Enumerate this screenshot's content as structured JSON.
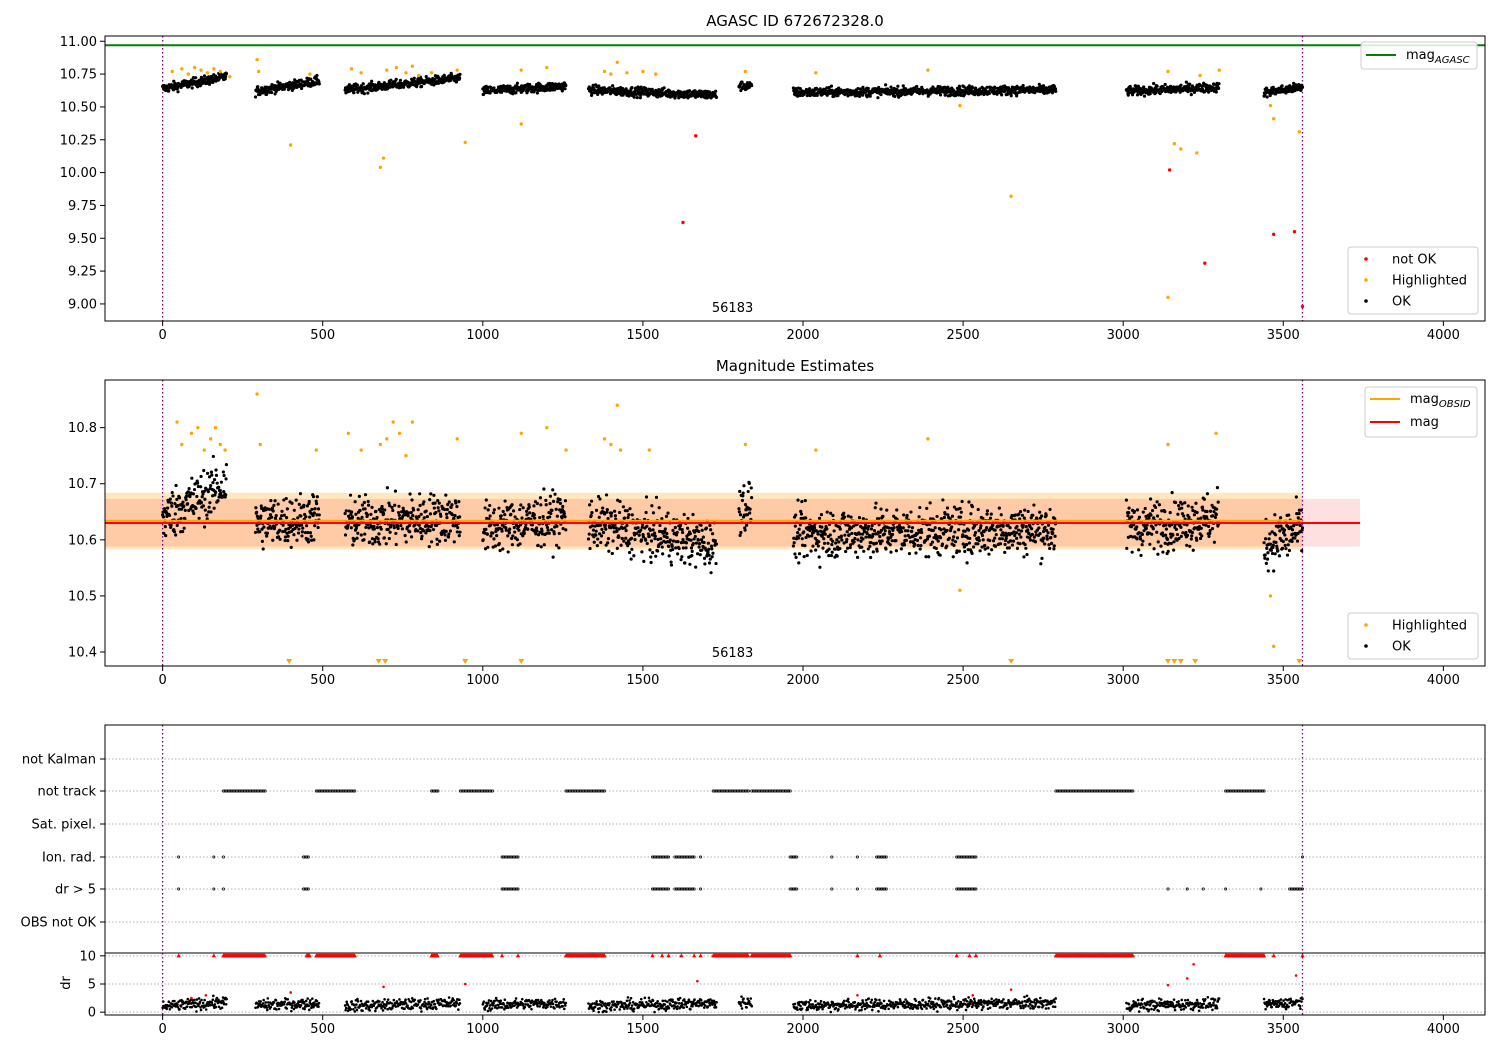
{
  "chart_data": [
    {
      "type": "scatter",
      "title": "AGASC ID 672672328.0",
      "xlim": [
        -180,
        4130
      ],
      "ylim": [
        8.87,
        11.04
      ],
      "x_ticks": [
        0,
        500,
        1000,
        1500,
        2000,
        2500,
        3000,
        3500,
        4000
      ],
      "y_ticks": [
        9.0,
        9.25,
        9.5,
        9.75,
        10.0,
        10.25,
        10.5,
        10.75,
        11.0
      ],
      "y_tick_labels": [
        "9.00",
        "9.25",
        "9.50",
        "9.75",
        "10.00",
        "10.25",
        "10.50",
        "10.75",
        "11.00"
      ],
      "annotation": "56183",
      "annotation_x": 1780,
      "vlines": [
        0,
        3560
      ],
      "vline_color": "#800080",
      "hlines": [
        {
          "name": "mag_AGASC",
          "y": 10.97,
          "color": "#008000"
        }
      ],
      "legend_lines": [
        {
          "label": "mag",
          "sub": "AGASC",
          "color": "#008000"
        }
      ],
      "legend_points": [
        {
          "label": "not OK",
          "color": "#ff0000"
        },
        {
          "label": "Highlighted",
          "color": "#ffa500"
        },
        {
          "label": "OK",
          "color": "#000000"
        }
      ],
      "series": [
        {
          "name": "OK",
          "color": "#000000",
          "segments": [
            [
              0,
              200,
              10.64,
              10.73
            ],
            [
              290,
              490,
              10.62,
              10.7
            ],
            [
              570,
              930,
              10.63,
              10.72
            ],
            [
              1000,
              1260,
              10.62,
              10.66
            ],
            [
              1330,
              1730,
              10.63,
              10.59
            ],
            [
              1800,
              1840,
              10.66,
              10.66
            ],
            [
              1970,
              2790,
              10.61,
              10.63
            ],
            [
              3010,
              3300,
              10.62,
              10.65
            ],
            [
              3440,
              3560,
              10.61,
              10.65
            ]
          ],
          "spread": 0.035
        },
        {
          "name": "Highlighted",
          "color": "#ffa500",
          "points": [
            [
              30,
              10.77
            ],
            [
              60,
              10.79
            ],
            [
              80,
              10.75
            ],
            [
              100,
              10.8
            ],
            [
              120,
              10.78
            ],
            [
              140,
              10.76
            ],
            [
              160,
              10.79
            ],
            [
              180,
              10.77
            ],
            [
              210,
              10.73
            ],
            [
              295,
              10.86
            ],
            [
              300,
              10.77
            ],
            [
              400,
              10.21
            ],
            [
              460,
              10.75
            ],
            [
              590,
              10.79
            ],
            [
              620,
              10.76
            ],
            [
              680,
              10.04
            ],
            [
              690,
              10.11
            ],
            [
              700,
              10.78
            ],
            [
              730,
              10.8
            ],
            [
              760,
              10.76
            ],
            [
              780,
              10.81
            ],
            [
              800,
              10.74
            ],
            [
              840,
              10.76
            ],
            [
              920,
              10.78
            ],
            [
              945,
              10.23
            ],
            [
              1120,
              10.37
            ],
            [
              1120,
              10.78
            ],
            [
              1200,
              10.8
            ],
            [
              1380,
              10.77
            ],
            [
              1400,
              10.75
            ],
            [
              1420,
              10.84
            ],
            [
              1450,
              10.76
            ],
            [
              1500,
              10.77
            ],
            [
              1540,
              10.75
            ],
            [
              1820,
              10.77
            ],
            [
              2040,
              10.76
            ],
            [
              2390,
              10.78
            ],
            [
              2490,
              10.51
            ],
            [
              2650,
              9.82
            ],
            [
              3140,
              10.77
            ],
            [
              3140,
              9.05
            ],
            [
              3160,
              10.22
            ],
            [
              3180,
              10.18
            ],
            [
              3230,
              10.15
            ],
            [
              3240,
              10.74
            ],
            [
              3300,
              10.78
            ],
            [
              3460,
              10.51
            ],
            [
              3470,
              10.41
            ],
            [
              3550,
              10.31
            ]
          ]
        },
        {
          "name": "not OK",
          "color": "#ff0000",
          "points": [
            [
              1625,
              9.62
            ],
            [
              1665,
              10.28
            ],
            [
              3145,
              10.02
            ],
            [
              3255,
              9.31
            ],
            [
              3470,
              9.53
            ],
            [
              3535,
              9.55
            ],
            [
              3560,
              8.98
            ]
          ]
        }
      ]
    },
    {
      "type": "scatter",
      "title": "Magnitude Estimates",
      "xlim": [
        -180,
        4130
      ],
      "ylim": [
        10.375,
        10.885
      ],
      "x_ticks": [
        0,
        500,
        1000,
        1500,
        2000,
        2500,
        3000,
        3500,
        4000
      ],
      "y_ticks": [
        10.4,
        10.5,
        10.6,
        10.7,
        10.8
      ],
      "y_tick_labels": [
        "10.4",
        "10.5",
        "10.6",
        "10.7",
        "10.8"
      ],
      "annotation": "56183",
      "annotation_x": 1780,
      "vlines": [
        0,
        3560
      ],
      "vline_color": "#800080",
      "bands": [
        {
          "name": "mag_OBSID_band",
          "x": [
            -180,
            3560
          ],
          "y": [
            10.583,
            10.684
          ],
          "color": "#ffa500",
          "opacity": 0.25
        },
        {
          "name": "mag_band",
          "x": [
            -180,
            3740
          ],
          "y": [
            10.588,
            10.673
          ],
          "color": "#ff0000",
          "opacity": 0.12
        }
      ],
      "hlines": [
        {
          "name": "mag_OBSID",
          "y": 10.634,
          "color": "#ffa500",
          "x": [
            -180,
            3560
          ]
        },
        {
          "name": "mag",
          "y": 10.63,
          "color": "#ff0000",
          "x": [
            -180,
            3740
          ]
        }
      ],
      "legend_lines": [
        {
          "label": "mag",
          "sub": "OBSID",
          "color": "#ffa500"
        },
        {
          "label": "mag",
          "sub": "",
          "color": "#ff0000"
        }
      ],
      "legend_points": [
        {
          "label": "Highlighted",
          "color": "#ffa500"
        },
        {
          "label": "OK",
          "color": "#000000"
        }
      ],
      "series": [
        {
          "name": "OK",
          "color": "#000000",
          "segments": [
            [
              0,
              200,
              10.64,
              10.7
            ],
            [
              290,
              490,
              10.63,
              10.64
            ],
            [
              570,
              930,
              10.63,
              10.64
            ],
            [
              1000,
              1260,
              10.62,
              10.64
            ],
            [
              1330,
              1730,
              10.63,
              10.59
            ],
            [
              1800,
              1840,
              10.66,
              10.66
            ],
            [
              1970,
              2790,
              10.61,
              10.62
            ],
            [
              3010,
              3300,
              10.62,
              10.64
            ],
            [
              3440,
              3560,
              10.59,
              10.62
            ]
          ],
          "spread": 0.045
        },
        {
          "name": "Highlighted",
          "color": "#ffa500",
          "points": [
            [
              45,
              10.81
            ],
            [
              60,
              10.77
            ],
            [
              90,
              10.79
            ],
            [
              110,
              10.8
            ],
            [
              130,
              10.76
            ],
            [
              150,
              10.78
            ],
            [
              165,
              10.8
            ],
            [
              180,
              10.77
            ],
            [
              195,
              10.76
            ],
            [
              295,
              10.86
            ],
            [
              305,
              10.77
            ],
            [
              480,
              10.76
            ],
            [
              580,
              10.79
            ],
            [
              620,
              10.76
            ],
            [
              680,
              10.77
            ],
            [
              700,
              10.78
            ],
            [
              720,
              10.81
            ],
            [
              740,
              10.79
            ],
            [
              760,
              10.75
            ],
            [
              780,
              10.81
            ],
            [
              920,
              10.78
            ],
            [
              1120,
              10.79
            ],
            [
              1200,
              10.8
            ],
            [
              1260,
              10.76
            ],
            [
              1380,
              10.78
            ],
            [
              1400,
              10.77
            ],
            [
              1420,
              10.84
            ],
            [
              1430,
              10.76
            ],
            [
              1520,
              10.76
            ],
            [
              1820,
              10.77
            ],
            [
              2040,
              10.76
            ],
            [
              2390,
              10.78
            ],
            [
              2490,
              10.51
            ],
            [
              3140,
              10.77
            ],
            [
              3290,
              10.79
            ],
            [
              3460,
              10.5
            ],
            [
              3470,
              10.41
            ]
          ]
        }
      ],
      "offscale_markers": [
        395,
        675,
        695,
        945,
        1120,
        2650,
        3140,
        3160,
        3180,
        3225,
        3550
      ]
    },
    {
      "type": "scatter",
      "xlim": [
        -180,
        4130
      ],
      "x_ticks": [
        0,
        500,
        1000,
        1500,
        2000,
        2500,
        3000,
        3500,
        4000
      ],
      "vlines": [
        0,
        3560
      ],
      "vline_color": "#800080",
      "categories": [
        "not Kalman",
        "not track",
        "Sat. pixel.",
        "Ion. rad.",
        "dr > 5",
        "OBS not OK"
      ],
      "flags": {
        "not Kalman": [],
        "not track": [
          [
            190,
            320
          ],
          [
            480,
            600
          ],
          [
            840,
            860
          ],
          [
            930,
            1030
          ],
          [
            1260,
            1380
          ],
          [
            1720,
            1830
          ],
          [
            1840,
            1960
          ],
          [
            2790,
            3030
          ],
          [
            3320,
            3440
          ]
        ],
        "Sat. pixel.": [],
        "Ion. rad.": [
          [
            50,
            50
          ],
          [
            160,
            160
          ],
          [
            190,
            190
          ],
          [
            440,
            455
          ],
          [
            1060,
            1110
          ],
          [
            1530,
            1580
          ],
          [
            1600,
            1660
          ],
          [
            1680,
            1680
          ],
          [
            1960,
            1980
          ],
          [
            2090,
            2090
          ],
          [
            2170,
            2170
          ],
          [
            2230,
            2260
          ],
          [
            2480,
            2540
          ],
          [
            3560,
            3560
          ]
        ],
        "dr > 5": [
          [
            50,
            50
          ],
          [
            160,
            160
          ],
          [
            190,
            190
          ],
          [
            440,
            455
          ],
          [
            1060,
            1110
          ],
          [
            1530,
            1580
          ],
          [
            1600,
            1660
          ],
          [
            1680,
            1680
          ],
          [
            1960,
            1980
          ],
          [
            2090,
            2090
          ],
          [
            2170,
            2170
          ],
          [
            2230,
            2260
          ],
          [
            2480,
            2540
          ],
          [
            3140,
            3140
          ],
          [
            3200,
            3200
          ],
          [
            3250,
            3250
          ],
          [
            3320,
            3320
          ],
          [
            3430,
            3430
          ],
          [
            3520,
            3560
          ]
        ],
        "OBS not OK": []
      },
      "dr_ylabel": "dr",
      "dr_ticks": [
        0,
        5,
        10
      ],
      "dr_ylim": [
        -0.5,
        10.5
      ],
      "dr_series": {
        "OK_segments": [
          [
            0,
            200,
            1.0,
            1.8
          ],
          [
            290,
            490,
            1.2,
            1.6
          ],
          [
            570,
            930,
            1.1,
            1.6
          ],
          [
            1000,
            1260,
            1.3,
            1.6
          ],
          [
            1330,
            1730,
            1.1,
            1.6
          ],
          [
            1800,
            1840,
            1.7,
            1.7
          ],
          [
            1970,
            2790,
            1.2,
            1.6
          ],
          [
            3010,
            3300,
            1.2,
            1.5
          ],
          [
            3440,
            3560,
            1.3,
            1.9
          ]
        ],
        "red_clipped_segments": [
          [
            190,
            320
          ],
          [
            450,
            460
          ],
          [
            480,
            600
          ],
          [
            840,
            860
          ],
          [
            930,
            1030
          ],
          [
            1260,
            1380
          ],
          [
            1720,
            1830
          ],
          [
            1840,
            1960
          ],
          [
            2790,
            3030
          ],
          [
            3320,
            3440
          ]
        ],
        "red_clipped_points": [
          50,
          160,
          1060,
          1110,
          1530,
          1560,
          1580,
          1620,
          1660,
          1680,
          2170,
          2240,
          2480,
          2520,
          2540,
          3470,
          3560
        ],
        "red_points": [
          [
            90,
            2.5
          ],
          [
            135,
            3.0
          ],
          [
            400,
            3.5
          ],
          [
            690,
            4.5
          ],
          [
            945,
            5.0
          ],
          [
            1670,
            5.5
          ],
          [
            2170,
            3.0
          ],
          [
            2530,
            3.0
          ],
          [
            2650,
            4.0
          ],
          [
            3140,
            4.8
          ],
          [
            3200,
            6.0
          ],
          [
            3220,
            8.5
          ],
          [
            3540,
            6.5
          ]
        ]
      }
    }
  ]
}
